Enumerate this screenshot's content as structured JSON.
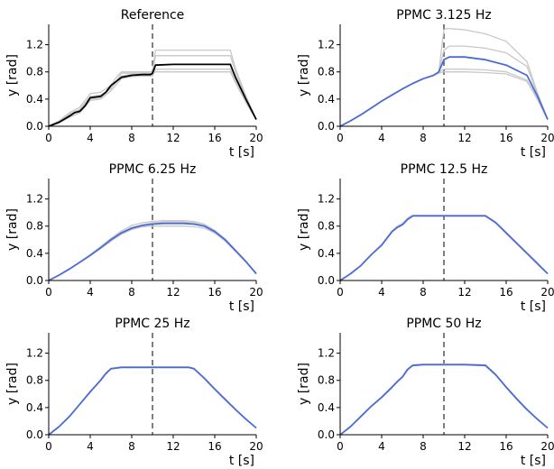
{
  "chart_data": [
    {
      "type": "line",
      "title": "Reference",
      "xlabel": "t  [s]",
      "ylabel": "y  [rad]",
      "xlim": [
        0,
        20
      ],
      "ylim": [
        0,
        1.5
      ],
      "xticks": [
        "0",
        "4",
        "8",
        "12",
        "16",
        "20"
      ],
      "yticks": [
        "0.0",
        "0.4",
        "0.8",
        "1.2"
      ],
      "annotations": {
        "vline_x": 10
      },
      "series": [
        {
          "color": "#000000",
          "x": [
            0,
            1,
            2,
            2.5,
            3,
            3.5,
            4,
            4.5,
            5,
            5.5,
            6,
            6.5,
            7,
            8,
            9,
            9.8,
            10,
            10.3,
            12,
            14,
            16,
            17.5,
            18,
            19,
            20
          ],
          "y": [
            0,
            0.06,
            0.15,
            0.2,
            0.22,
            0.3,
            0.42,
            0.43,
            0.44,
            0.5,
            0.6,
            0.66,
            0.72,
            0.75,
            0.76,
            0.76,
            0.78,
            0.9,
            0.91,
            0.91,
            0.91,
            0.91,
            0.72,
            0.4,
            0.1
          ]
        },
        {
          "color": "#c8c8c8",
          "x": [
            0,
            1,
            2,
            3,
            3.5,
            4,
            5,
            6,
            6.5,
            7,
            8,
            9,
            9.8,
            10,
            10.3,
            12,
            14,
            16,
            17.5,
            18,
            19,
            20
          ],
          "y": [
            0,
            0.08,
            0.2,
            0.28,
            0.38,
            0.48,
            0.5,
            0.6,
            0.72,
            0.8,
            0.8,
            0.8,
            0.8,
            0.82,
            1.12,
            1.12,
            1.12,
            1.12,
            1.12,
            0.85,
            0.45,
            0.1
          ]
        },
        {
          "color": "#c8c8c8",
          "x": [
            0,
            1,
            2,
            3,
            4,
            5,
            6,
            7,
            8,
            9,
            9.8,
            10,
            10.3,
            12,
            14,
            16,
            17.5,
            18,
            19,
            20
          ],
          "y": [
            0,
            0.07,
            0.18,
            0.25,
            0.44,
            0.46,
            0.55,
            0.78,
            0.78,
            0.78,
            0.78,
            0.78,
            1.04,
            1.04,
            1.04,
            1.04,
            1.04,
            0.8,
            0.42,
            0.1
          ]
        },
        {
          "color": "#c8c8c8",
          "x": [
            0,
            1,
            2,
            3,
            4,
            5,
            6,
            7,
            8,
            9,
            9.8,
            10,
            10.3,
            12,
            14,
            16,
            17.5,
            18,
            19,
            20
          ],
          "y": [
            0,
            0.05,
            0.13,
            0.2,
            0.38,
            0.4,
            0.52,
            0.7,
            0.73,
            0.74,
            0.74,
            0.74,
            0.84,
            0.84,
            0.84,
            0.84,
            0.84,
            0.66,
            0.36,
            0.1
          ]
        },
        {
          "color": "#c8c8c8",
          "x": [
            0,
            1,
            2,
            3,
            4,
            5,
            6,
            7,
            8,
            9,
            9.8,
            10,
            10.3,
            12,
            14,
            16,
            17.5,
            18,
            19,
            20
          ],
          "y": [
            0,
            0.06,
            0.16,
            0.24,
            0.4,
            0.42,
            0.56,
            0.74,
            0.76,
            0.77,
            0.77,
            0.77,
            0.8,
            0.8,
            0.8,
            0.8,
            0.8,
            0.64,
            0.35,
            0.1
          ]
        }
      ]
    },
    {
      "type": "line",
      "title": "PPMC 3.125 Hz",
      "xlabel": "t  [s]",
      "ylabel": "y  [rad]",
      "xlim": [
        0,
        20
      ],
      "ylim": [
        0,
        1.5
      ],
      "xticks": [
        "0",
        "4",
        "8",
        "12",
        "16",
        "20"
      ],
      "yticks": [
        "0.0",
        "0.4",
        "0.8",
        "1.2"
      ],
      "annotations": {
        "vline_x": 10
      },
      "series": [
        {
          "color": "#4a6cd4",
          "x": [
            0,
            1,
            2,
            3,
            4,
            5,
            6,
            7,
            8,
            9,
            9.5,
            10,
            10.5,
            12,
            14,
            16,
            18,
            19,
            20
          ],
          "y": [
            0,
            0.08,
            0.17,
            0.27,
            0.37,
            0.46,
            0.55,
            0.63,
            0.7,
            0.75,
            0.8,
            0.98,
            1.02,
            1.02,
            0.98,
            0.9,
            0.75,
            0.45,
            0.1
          ]
        },
        {
          "color": "#c8c8c8",
          "x": [
            0,
            1,
            2,
            3,
            4,
            5,
            6,
            7,
            8,
            9,
            9.5,
            10,
            10.3,
            12,
            14,
            16,
            18,
            19,
            20
          ],
          "y": [
            0,
            0.08,
            0.17,
            0.27,
            0.37,
            0.46,
            0.55,
            0.63,
            0.7,
            0.75,
            0.8,
            1.42,
            1.44,
            1.42,
            1.36,
            1.25,
            0.95,
            0.5,
            0.1
          ]
        },
        {
          "color": "#c8c8c8",
          "x": [
            0,
            1,
            2,
            3,
            4,
            5,
            6,
            7,
            8,
            9,
            9.5,
            10,
            10.5,
            12,
            14,
            16,
            18,
            19,
            20
          ],
          "y": [
            0,
            0.08,
            0.17,
            0.27,
            0.37,
            0.46,
            0.55,
            0.63,
            0.7,
            0.75,
            0.8,
            1.12,
            1.18,
            1.18,
            1.15,
            1.08,
            0.88,
            0.48,
            0.1
          ]
        },
        {
          "color": "#c8c8c8",
          "x": [
            0,
            1,
            2,
            3,
            4,
            5,
            6,
            7,
            8,
            9,
            9.5,
            10,
            10.5,
            12,
            14,
            16,
            18,
            19,
            20
          ],
          "y": [
            0,
            0.08,
            0.17,
            0.27,
            0.37,
            0.46,
            0.55,
            0.63,
            0.7,
            0.75,
            0.79,
            0.84,
            0.84,
            0.84,
            0.83,
            0.8,
            0.68,
            0.42,
            0.1
          ]
        },
        {
          "color": "#c8c8c8",
          "x": [
            0,
            1,
            2,
            3,
            4,
            5,
            6,
            7,
            8,
            9,
            9.5,
            10,
            10.5,
            12,
            14,
            16,
            18,
            19,
            20
          ],
          "y": [
            0,
            0.08,
            0.17,
            0.27,
            0.37,
            0.46,
            0.55,
            0.63,
            0.7,
            0.75,
            0.78,
            0.8,
            0.8,
            0.8,
            0.79,
            0.77,
            0.66,
            0.4,
            0.1
          ]
        }
      ]
    },
    {
      "type": "line",
      "title": "PPMC 6.25 Hz",
      "xlabel": "t  [s]",
      "ylabel": "y  [rad]",
      "xlim": [
        0,
        20
      ],
      "ylim": [
        0,
        1.5
      ],
      "xticks": [
        "0",
        "4",
        "8",
        "12",
        "16",
        "20"
      ],
      "yticks": [
        "0.0",
        "0.4",
        "0.8",
        "1.2"
      ],
      "annotations": {
        "vline_x": 10
      },
      "series": [
        {
          "color": "#4a6cd4",
          "x": [
            0,
            1,
            2,
            3,
            4,
            5,
            6,
            7,
            8,
            9,
            10,
            11,
            12,
            13,
            14,
            15,
            16,
            17,
            18,
            19,
            20
          ],
          "y": [
            0,
            0.08,
            0.17,
            0.27,
            0.37,
            0.48,
            0.6,
            0.7,
            0.77,
            0.81,
            0.83,
            0.84,
            0.84,
            0.84,
            0.83,
            0.8,
            0.72,
            0.6,
            0.44,
            0.28,
            0.1
          ]
        },
        {
          "color": "#c8c8c8",
          "x": [
            0,
            1,
            2,
            3,
            4,
            5,
            6,
            7,
            8,
            9,
            10,
            11,
            12,
            13,
            14,
            15,
            16,
            17,
            18,
            19,
            20
          ],
          "y": [
            0,
            0.08,
            0.17,
            0.27,
            0.38,
            0.5,
            0.62,
            0.73,
            0.81,
            0.85,
            0.87,
            0.88,
            0.88,
            0.88,
            0.87,
            0.83,
            0.74,
            0.61,
            0.45,
            0.28,
            0.1
          ]
        },
        {
          "color": "#c8c8c8",
          "x": [
            0,
            1,
            2,
            3,
            4,
            5,
            6,
            7,
            8,
            9,
            10,
            11,
            12,
            13,
            14,
            15,
            16,
            17,
            18,
            19,
            20
          ],
          "y": [
            0,
            0.08,
            0.17,
            0.27,
            0.37,
            0.49,
            0.61,
            0.71,
            0.78,
            0.82,
            0.85,
            0.86,
            0.86,
            0.86,
            0.85,
            0.81,
            0.73,
            0.6,
            0.44,
            0.28,
            0.1
          ]
        },
        {
          "color": "#c8c8c8",
          "x": [
            0,
            1,
            2,
            3,
            4,
            5,
            6,
            7,
            8,
            9,
            10,
            11,
            12,
            13,
            14,
            15,
            16,
            17,
            18,
            19,
            20
          ],
          "y": [
            0,
            0.08,
            0.17,
            0.27,
            0.37,
            0.47,
            0.58,
            0.68,
            0.75,
            0.79,
            0.8,
            0.8,
            0.8,
            0.8,
            0.79,
            0.77,
            0.7,
            0.58,
            0.43,
            0.27,
            0.1
          ]
        }
      ]
    },
    {
      "type": "line",
      "title": "PPMC 12.5 Hz",
      "xlabel": "t  [s]",
      "ylabel": "y  [rad]",
      "xlim": [
        0,
        20
      ],
      "ylim": [
        0,
        1.5
      ],
      "xticks": [
        "0",
        "4",
        "8",
        "12",
        "16",
        "20"
      ],
      "yticks": [
        "0.0",
        "0.4",
        "0.8",
        "1.2"
      ],
      "annotations": {
        "vline_x": 10
      },
      "series": [
        {
          "color": "#4a6cd4",
          "x": [
            0,
            1,
            2,
            3,
            4,
            5,
            5.5,
            6,
            6.5,
            7,
            8,
            10,
            12,
            14,
            15,
            16,
            17,
            18,
            19,
            20
          ],
          "y": [
            0,
            0.1,
            0.22,
            0.38,
            0.52,
            0.72,
            0.78,
            0.82,
            0.9,
            0.95,
            0.95,
            0.95,
            0.95,
            0.95,
            0.85,
            0.7,
            0.55,
            0.4,
            0.25,
            0.1
          ]
        },
        {
          "color": "#c8c8c8",
          "x": [
            0,
            1,
            2,
            3,
            4,
            5,
            5.5,
            6,
            6.5,
            7,
            8,
            10,
            12,
            14,
            15,
            16,
            17,
            18,
            19,
            20
          ],
          "y": [
            0,
            0.1,
            0.22,
            0.38,
            0.53,
            0.73,
            0.8,
            0.84,
            0.92,
            0.96,
            0.96,
            0.96,
            0.96,
            0.96,
            0.86,
            0.71,
            0.56,
            0.41,
            0.26,
            0.1
          ]
        }
      ]
    },
    {
      "type": "line",
      "title": "PPMC 25 Hz",
      "xlabel": "t  [s]",
      "ylabel": "y  [rad]",
      "xlim": [
        0,
        20
      ],
      "ylim": [
        0,
        1.5
      ],
      "xticks": [
        "0",
        "4",
        "8",
        "12",
        "16",
        "20"
      ],
      "yticks": [
        "0.0",
        "0.4",
        "0.8",
        "1.2"
      ],
      "annotations": {
        "vline_x": 10
      },
      "series": [
        {
          "color": "#4a6cd4",
          "x": [
            0,
            1,
            2,
            3,
            4,
            5,
            5.5,
            6,
            7,
            8,
            10,
            12,
            13.5,
            14,
            15,
            16,
            17,
            18,
            19,
            20
          ],
          "y": [
            0,
            0.12,
            0.27,
            0.45,
            0.63,
            0.8,
            0.9,
            0.97,
            0.99,
            0.99,
            0.99,
            0.99,
            0.99,
            0.97,
            0.83,
            0.67,
            0.52,
            0.37,
            0.23,
            0.1
          ]
        },
        {
          "color": "#c8c8c8",
          "x": [
            0,
            1,
            2,
            3,
            4,
            5,
            5.5,
            6,
            7,
            8,
            10,
            12,
            13.5,
            14,
            15,
            16,
            17,
            18,
            19,
            20
          ],
          "y": [
            0,
            0.12,
            0.27,
            0.45,
            0.64,
            0.81,
            0.91,
            0.98,
            1.0,
            1.0,
            1.0,
            1.0,
            1.0,
            0.98,
            0.84,
            0.68,
            0.53,
            0.38,
            0.23,
            0.1
          ]
        }
      ]
    },
    {
      "type": "line",
      "title": "PPMC 50 Hz",
      "xlabel": "t  [s]",
      "ylabel": "y  [rad]",
      "xlim": [
        0,
        20
      ],
      "ylim": [
        0,
        1.5
      ],
      "xticks": [
        "0",
        "4",
        "8",
        "12",
        "16",
        "20"
      ],
      "yticks": [
        "0.0",
        "0.4",
        "0.8",
        "1.2"
      ],
      "annotations": {
        "vline_x": 10
      },
      "series": [
        {
          "color": "#4a6cd4",
          "x": [
            0,
            1,
            2,
            3,
            4,
            5,
            5.5,
            6,
            6.5,
            7,
            8,
            10,
            12,
            14,
            15,
            16,
            17,
            18,
            19,
            20
          ],
          "y": [
            0,
            0.12,
            0.27,
            0.42,
            0.55,
            0.7,
            0.78,
            0.85,
            0.96,
            1.02,
            1.03,
            1.03,
            1.03,
            1.02,
            0.88,
            0.7,
            0.53,
            0.37,
            0.23,
            0.1
          ]
        },
        {
          "color": "#c8c8c8",
          "x": [
            0,
            1,
            2,
            3,
            4,
            5,
            5.5,
            6,
            6.5,
            7,
            8,
            10,
            12,
            14,
            15,
            16,
            17,
            18,
            19,
            20
          ],
          "y": [
            0,
            0.12,
            0.27,
            0.42,
            0.56,
            0.71,
            0.79,
            0.86,
            0.97,
            1.03,
            1.04,
            1.04,
            1.04,
            1.03,
            0.89,
            0.71,
            0.54,
            0.38,
            0.23,
            0.1
          ]
        }
      ]
    }
  ]
}
